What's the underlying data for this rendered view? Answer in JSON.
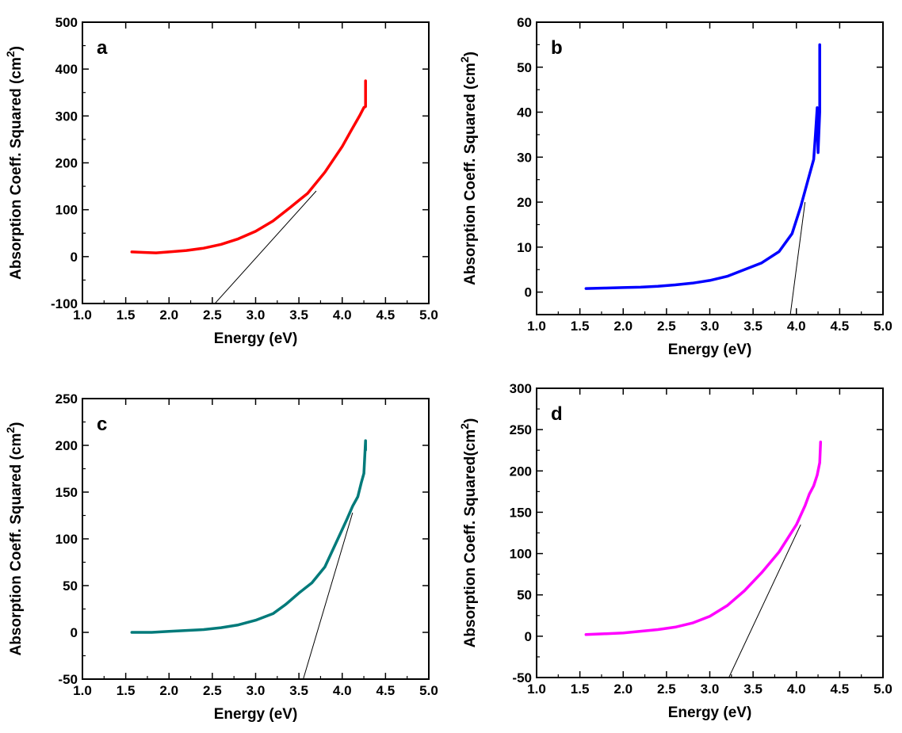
{
  "chart_data": [
    {
      "type": "line",
      "panel_label": "a",
      "xlabel": "Energy (eV)",
      "ylabel": "Absorption Coeff. Squared (cm",
      "ylabel_sup": "2",
      "ylabel_close": ")",
      "xlim": [
        1.0,
        5.0
      ],
      "ylim": [
        -100,
        500
      ],
      "xticks": [
        "1.0",
        "1.5",
        "2.0",
        "2.5",
        "3.0",
        "3.5",
        "4.0",
        "4.5",
        "5.0"
      ],
      "yticks": [
        "-100",
        "0",
        "100",
        "200",
        "300",
        "400",
        "500"
      ],
      "series": [
        {
          "color": "#ff0000",
          "x": [
            1.57,
            1.7,
            1.85,
            2.0,
            2.2,
            2.4,
            2.6,
            2.8,
            3.0,
            3.2,
            3.4,
            3.6,
            3.8,
            4.0,
            4.1,
            4.2,
            4.25,
            4.27,
            4.27
          ],
          "y": [
            10,
            9,
            8,
            10,
            13,
            18,
            26,
            38,
            54,
            76,
            105,
            135,
            180,
            235,
            268,
            300,
            318,
            320,
            375
          ]
        }
      ],
      "fit_line": {
        "color": "#000000",
        "x": [
          2.53,
          3.7
        ],
        "y": [
          -100,
          140
        ]
      }
    },
    {
      "type": "line",
      "panel_label": "b",
      "xlabel": "Energy (eV)",
      "ylabel": "Absorption Coeff. Squared (cm",
      "ylabel_sup": "2",
      "ylabel_close": ")",
      "xlim": [
        1.0,
        5.0
      ],
      "ylim": [
        -5,
        60
      ],
      "xticks": [
        "1.0",
        "1.5",
        "2.0",
        "2.5",
        "3.0",
        "3.5",
        "4.0",
        "4.5",
        "5.0"
      ],
      "yticks": [
        "0",
        "10",
        "20",
        "30",
        "40",
        "50",
        "60"
      ],
      "series": [
        {
          "color": "#0000ff",
          "x": [
            1.57,
            1.8,
            2.0,
            2.2,
            2.4,
            2.6,
            2.8,
            3.0,
            3.2,
            3.4,
            3.6,
            3.8,
            3.95,
            4.05,
            4.15,
            4.2,
            4.22,
            4.24,
            4.25,
            4.27,
            4.27
          ],
          "y": [
            0.8,
            0.9,
            1.0,
            1.1,
            1.3,
            1.6,
            2.0,
            2.6,
            3.5,
            5.0,
            6.5,
            9.0,
            13.0,
            19.0,
            26.0,
            29.5,
            35.0,
            41.0,
            31.0,
            40.0,
            55.0
          ]
        }
      ],
      "fit_line": {
        "color": "#000000",
        "x": [
          3.93,
          4.1
        ],
        "y": [
          -5,
          20
        ]
      }
    },
    {
      "type": "line",
      "panel_label": "c",
      "xlabel": "Energy (eV)",
      "ylabel": "Absorption Coeff. Squared (cm",
      "ylabel_sup": "2",
      "ylabel_close": ")",
      "xlim": [
        1.0,
        5.0
      ],
      "ylim": [
        -50,
        250
      ],
      "xticks": [
        "1.0",
        "1.5",
        "2.0",
        "2.5",
        "3.0",
        "3.5",
        "4.0",
        "4.5",
        "5.0"
      ],
      "yticks": [
        "-50",
        "0",
        "50",
        "100",
        "150",
        "200",
        "250"
      ],
      "series": [
        {
          "color": "#007a7a",
          "x": [
            1.57,
            1.8,
            2.0,
            2.2,
            2.4,
            2.6,
            2.8,
            3.0,
            3.2,
            3.35,
            3.5,
            3.65,
            3.8,
            3.95,
            4.05,
            4.12,
            4.18,
            4.22,
            4.25,
            4.27,
            4.27
          ],
          "y": [
            0,
            0,
            1,
            2,
            3,
            5,
            8,
            13,
            20,
            30,
            42,
            53,
            70,
            100,
            120,
            135,
            145,
            160,
            170,
            205,
            195
          ]
        }
      ],
      "fit_line": {
        "color": "#000000",
        "x": [
          3.55,
          4.12
        ],
        "y": [
          -50,
          128
        ]
      }
    },
    {
      "type": "line",
      "panel_label": "d",
      "xlabel": "Energy (eV)",
      "ylabel": "Absorption Coeff. Squared(cm",
      "ylabel_sup": "2",
      "ylabel_close": ")",
      "xlim": [
        1.0,
        5.0
      ],
      "ylim": [
        -50,
        300
      ],
      "xticks": [
        "1.0",
        "1.5",
        "2.0",
        "2.5",
        "3.0",
        "3.5",
        "4.0",
        "4.5",
        "5.0"
      ],
      "yticks": [
        "-50",
        "0",
        "50",
        "100",
        "150",
        "200",
        "250",
        "300"
      ],
      "series": [
        {
          "color": "#ff00ff",
          "x": [
            1.57,
            1.8,
            2.0,
            2.2,
            2.4,
            2.6,
            2.8,
            3.0,
            3.2,
            3.4,
            3.6,
            3.8,
            4.0,
            4.1,
            4.15,
            4.2,
            4.24,
            4.27,
            4.28
          ],
          "y": [
            2,
            3,
            4,
            6,
            8,
            11,
            16,
            24,
            37,
            55,
            77,
            102,
            135,
            158,
            172,
            182,
            195,
            210,
            235
          ]
        }
      ],
      "fit_line": {
        "color": "#000000",
        "x": [
          3.22,
          4.05
        ],
        "y": [
          -50,
          135
        ]
      }
    }
  ]
}
